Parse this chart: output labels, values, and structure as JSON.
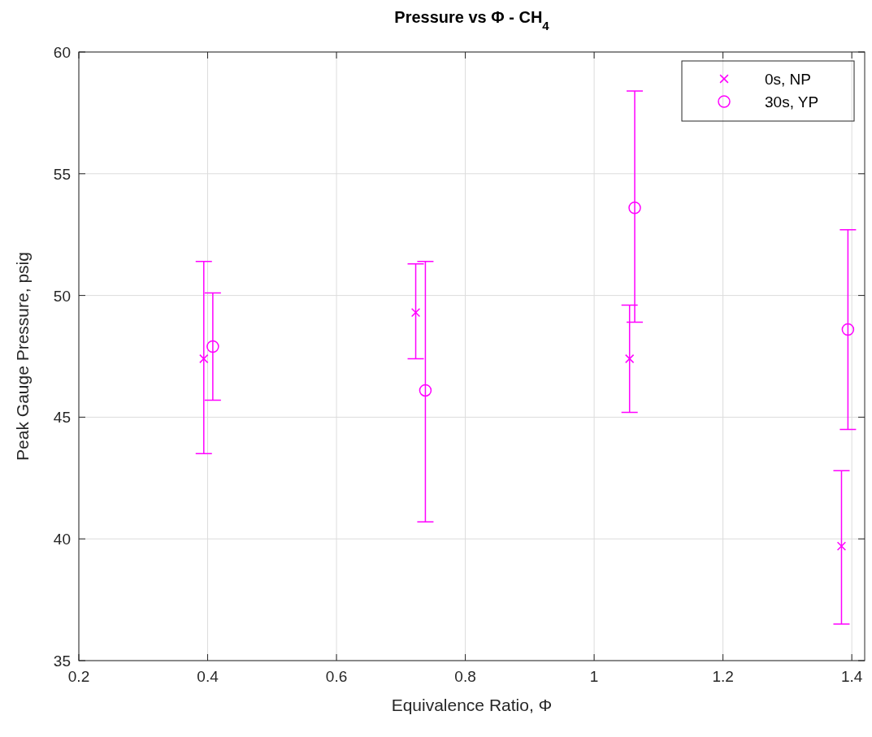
{
  "chart_data": {
    "type": "scatter",
    "title": "Pressure vs Φ - CH$_{4}$",
    "xlabel": "Equivalence Ratio, Φ",
    "ylabel": "Peak Gauge Pressure, psig",
    "xlim": [
      0.2,
      1.42
    ],
    "xticks": [
      0.2,
      0.4,
      0.6,
      0.8,
      1,
      1.2,
      1.4
    ],
    "ylim": [
      35,
      60
    ],
    "yticks": [
      35,
      40,
      45,
      50,
      55,
      60
    ],
    "grid": true,
    "legend": "top right",
    "series": [
      {
        "name": "0s, NP",
        "color": "#ff00ff",
        "marker": "cross",
        "x": [
          0.394,
          0.723,
          1.055,
          1.384
        ],
        "values": [
          47.4,
          49.3,
          47.4,
          39.7
        ],
        "errors": [
          [
            43.5,
            51.4
          ],
          [
            47.4,
            51.3
          ],
          [
            45.2,
            49.6
          ],
          [
            36.5,
            42.8
          ]
        ]
      },
      {
        "name": "30s, YP",
        "color": "#ff00ff",
        "marker": "circle",
        "x": [
          0.408,
          0.738,
          1.063,
          1.394
        ],
        "values": [
          47.9,
          46.1,
          53.6,
          48.6
        ],
        "errors": [
          [
            45.7,
            50.1
          ],
          [
            40.7,
            51.4
          ],
          [
            48.9,
            58.4
          ],
          [
            44.5,
            52.7
          ]
        ]
      }
    ]
  }
}
